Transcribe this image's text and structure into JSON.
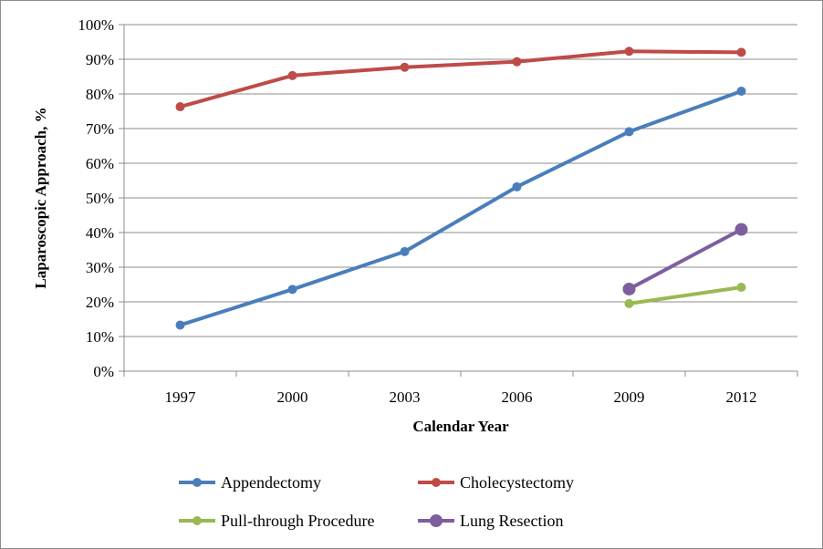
{
  "chart_data": {
    "type": "line",
    "xlabel": "Calendar Year",
    "ylabel": "Laparoscopic Approach, %",
    "x": [
      "1997",
      "2000",
      "2003",
      "2006",
      "2009",
      "2012"
    ],
    "ylim": [
      0,
      100
    ],
    "y_ticks": [
      0,
      10,
      20,
      30,
      40,
      50,
      60,
      70,
      80,
      90,
      100
    ],
    "y_tick_suffix": "%",
    "grid": true,
    "legend_position": "bottom",
    "series": [
      {
        "name": "Appendectomy",
        "color": "#4a7ebb",
        "values": [
          13.3,
          23.6,
          34.5,
          53.2,
          69.1,
          80.8
        ]
      },
      {
        "name": "Cholecystectomy",
        "color": "#be4b48",
        "values": [
          76.3,
          85.3,
          87.7,
          89.3,
          92.3,
          92.0
        ]
      },
      {
        "name": "Pull-through Procedure",
        "color": "#98b954",
        "values": [
          null,
          null,
          null,
          null,
          19.5,
          24.2
        ]
      },
      {
        "name": "Lung Resection",
        "color": "#7d5fa0",
        "values": [
          null,
          null,
          null,
          null,
          23.7,
          40.9
        ]
      }
    ]
  }
}
